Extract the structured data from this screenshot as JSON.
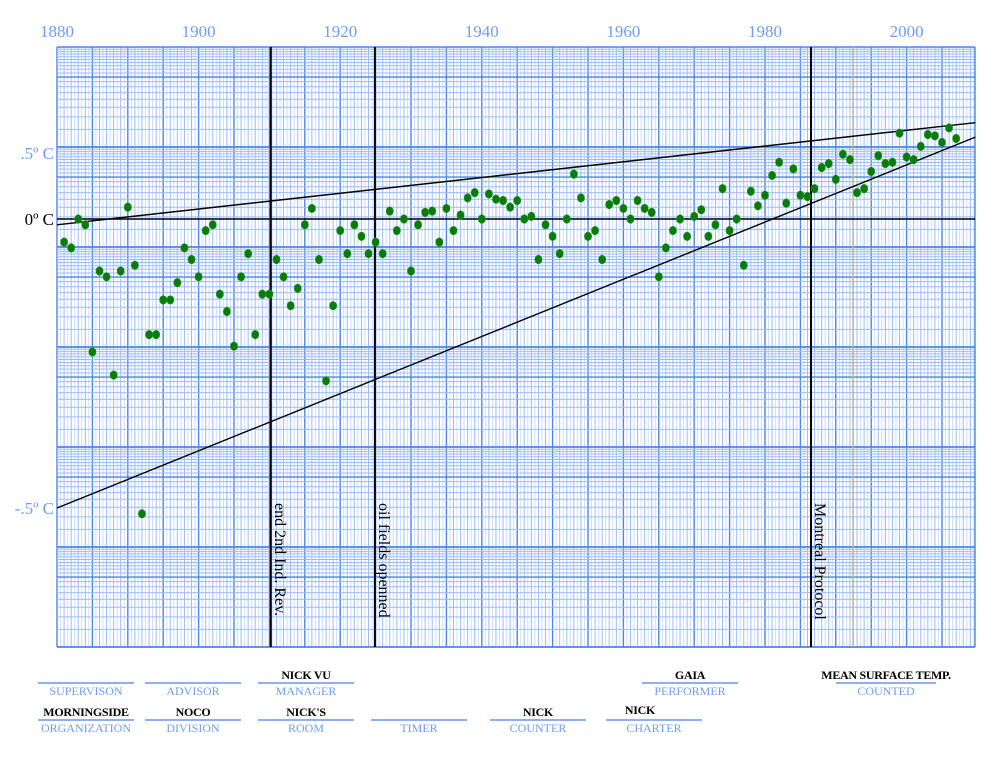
{
  "chart_data": {
    "type": "scatter",
    "title": "",
    "xlabel": "",
    "ylabel": "",
    "x_ticks": [
      "1880",
      "1900",
      "1920",
      "1940",
      "1960",
      "1980",
      "2000"
    ],
    "y_ticks": [
      {
        "value": 0.5,
        "label": ".5º C",
        "color": "#6f9cf2"
      },
      {
        "value": 0,
        "label": "0º C",
        "color": "#000000"
      },
      {
        "value": -0.5,
        "label": "-.5º C",
        "color": "#6f9cf2"
      }
    ],
    "xlim": [
      1880,
      2009.7
    ],
    "ylim": [
      -1.0,
      1.0
    ],
    "grid": true,
    "grid_style": "blue semi-log graph paper",
    "point_color": "#0a7a0a",
    "series": [
      {
        "x": [
          1881,
          1882,
          1883,
          1884,
          1885,
          1886,
          1887,
          1888,
          1889,
          1890,
          1891,
          1892,
          1893,
          1894,
          1895,
          1896,
          1897,
          1898,
          1899,
          1900,
          1901,
          1902,
          1903,
          1904,
          1905,
          1906,
          1907,
          1908,
          1909,
          1910,
          1911,
          1912,
          1913,
          1914,
          1915,
          1916,
          1917,
          1918,
          1919,
          1920,
          1921,
          1922,
          1923,
          1924,
          1925,
          1926,
          1927,
          1928,
          1929,
          1930,
          1931,
          1932,
          1933,
          1934,
          1935,
          1936,
          1937,
          1938,
          1939,
          1940,
          1941,
          1942,
          1943,
          1944,
          1945,
          1946,
          1947,
          1948,
          1949,
          1950,
          1951,
          1952,
          1953,
          1954,
          1955,
          1956,
          1957,
          1958,
          1959,
          1960,
          1961,
          1962,
          1963,
          1964,
          1965,
          1966,
          1967,
          1968,
          1969,
          1970,
          1971,
          1972,
          1973,
          1974,
          1975,
          1976,
          1977,
          1978,
          1979,
          1980,
          1981,
          1982,
          1983,
          1984,
          1985,
          1986,
          1987,
          1988,
          1989,
          1990,
          1991,
          1992,
          1993,
          1994,
          1995,
          1996,
          1997,
          1998,
          1999,
          2000,
          2001,
          2002,
          2003,
          2004,
          2005,
          2006,
          2007
        ],
        "y": [
          -0.04,
          -0.05,
          0.0,
          -0.01,
          -0.23,
          -0.09,
          -0.1,
          -0.27,
          -0.09,
          0.09,
          -0.08,
          -0.51,
          -0.2,
          -0.2,
          -0.14,
          -0.14,
          -0.11,
          -0.05,
          -0.07,
          -0.1,
          -0.02,
          -0.01,
          -0.13,
          -0.16,
          -0.22,
          -0.1,
          -0.06,
          -0.2,
          -0.13,
          -0.13,
          -0.07,
          -0.1,
          -0.15,
          -0.12,
          -0.01,
          0.08,
          -0.07,
          -0.28,
          -0.15,
          -0.02,
          -0.06,
          -0.01,
          -0.03,
          -0.06,
          -0.04,
          -0.06,
          0.06,
          -0.02,
          0.0,
          -0.09,
          -0.01,
          0.05,
          0.06,
          -0.04,
          0.08,
          -0.02,
          0.03,
          0.16,
          0.2,
          0.0,
          0.19,
          0.15,
          0.14,
          0.09,
          0.14,
          0.0,
          0.02,
          -0.07,
          -0.01,
          -0.03,
          -0.06,
          0.0,
          0.34,
          0.16,
          -0.03,
          -0.02,
          -0.07,
          0.11,
          0.14,
          0.08,
          0.0,
          0.14,
          0.08,
          0.05,
          -0.1,
          -0.05,
          -0.02,
          0.0,
          -0.03,
          0.02,
          0.07,
          -0.03,
          -0.01,
          0.23,
          -0.02,
          0.0,
          -0.08,
          0.21,
          0.1,
          0.18,
          0.33,
          0.43,
          0.12,
          0.38,
          0.18,
          0.17,
          0.23,
          0.39,
          0.42,
          0.3,
          0.49,
          0.45,
          0.2,
          0.23,
          0.36,
          0.48,
          0.42,
          0.43,
          0.65,
          0.47,
          0.45,
          0.55,
          0.64,
          0.63,
          0.58,
          0.69,
          0.61
        ]
      }
    ],
    "trend_lines": [
      {
        "from": [
          1880,
          -0.01
        ],
        "to": [
          2009.7,
          0.73
        ]
      },
      {
        "from": [
          1880,
          -0.5
        ],
        "to": [
          2009.7,
          0.62
        ]
      }
    ],
    "annotations": [
      {
        "x": 1910.2,
        "label": "end 2nd Ind. Rev."
      },
      {
        "x": 1924.9,
        "label": "oil fields openned"
      },
      {
        "x": 1986.5,
        "label": "Montreal Protocol"
      }
    ]
  },
  "footer": {
    "row1": [
      {
        "value": "",
        "label": "SUPERVISON"
      },
      {
        "value": "",
        "label": "ADVISOR"
      },
      {
        "value": "NICK VU",
        "label": "MANAGER"
      },
      {
        "value": "GAIA",
        "label": "PERFORMER"
      },
      {
        "value": "MEAN SURFACE TEMP.",
        "label": "COUNTED"
      }
    ],
    "row2": [
      {
        "value": "MORNINGSIDE",
        "label": "ORGANIZATION"
      },
      {
        "value": "NOCO",
        "label": "DIVISION"
      },
      {
        "value": "NICK'S",
        "label": "ROOM"
      },
      {
        "value": "",
        "label": "TIMER"
      },
      {
        "value": "NICK",
        "label": "COUNTER"
      },
      {
        "value": "NICK",
        "label": "CHARTER"
      }
    ]
  }
}
